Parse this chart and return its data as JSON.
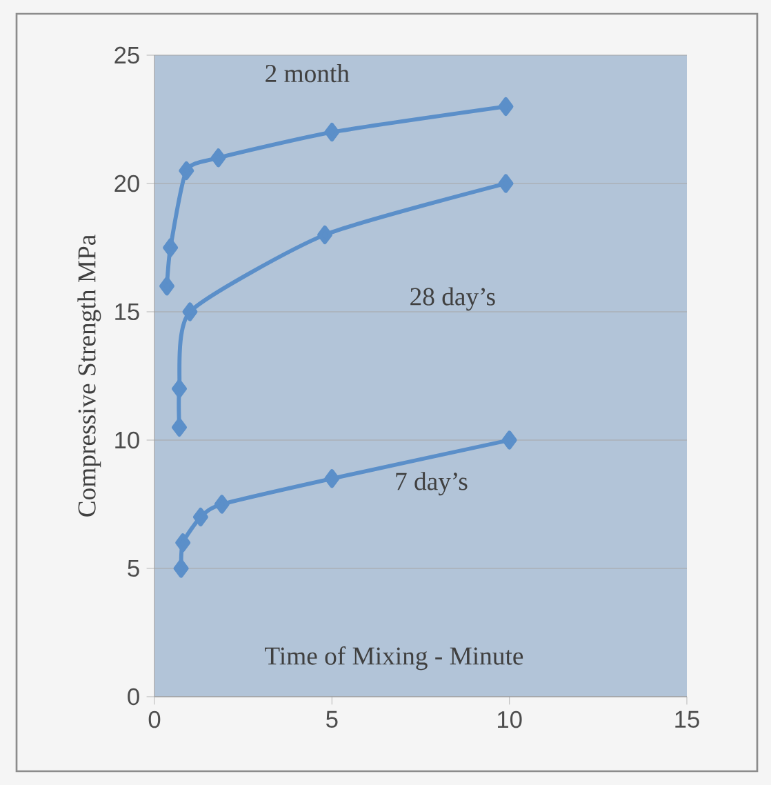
{
  "chart_data": {
    "type": "line",
    "xlabel": "Time of Mixing   - Minute",
    "ylabel": "Compressive Strength MPa",
    "xlim": [
      0,
      15
    ],
    "xticks": [
      0,
      5,
      10,
      15
    ],
    "ylim": [
      0,
      25
    ],
    "yticks": [
      0,
      5,
      10,
      15,
      20,
      25
    ],
    "grid": "y",
    "marker": "diamond",
    "line_style": "solid",
    "series": [
      {
        "name": "2 month",
        "color": "#5b8fc9",
        "x": [
          0.35,
          0.45,
          0.9,
          1.8,
          5,
          9.9
        ],
        "values": [
          16,
          17.5,
          20.5,
          21,
          22,
          23
        ]
      },
      {
        "name": "28 day’s",
        "color": "#5b8fc9",
        "x": [
          0.7,
          0.7,
          1,
          4.8,
          9.9
        ],
        "values": [
          10.5,
          12,
          15,
          18,
          20
        ]
      },
      {
        "name": "7 day’s",
        "color": "#5b8fc9",
        "x": [
          0.75,
          0.8,
          1.3,
          1.9,
          5,
          10
        ],
        "values": [
          5,
          6,
          7,
          7.5,
          8.5,
          10
        ]
      }
    ]
  }
}
